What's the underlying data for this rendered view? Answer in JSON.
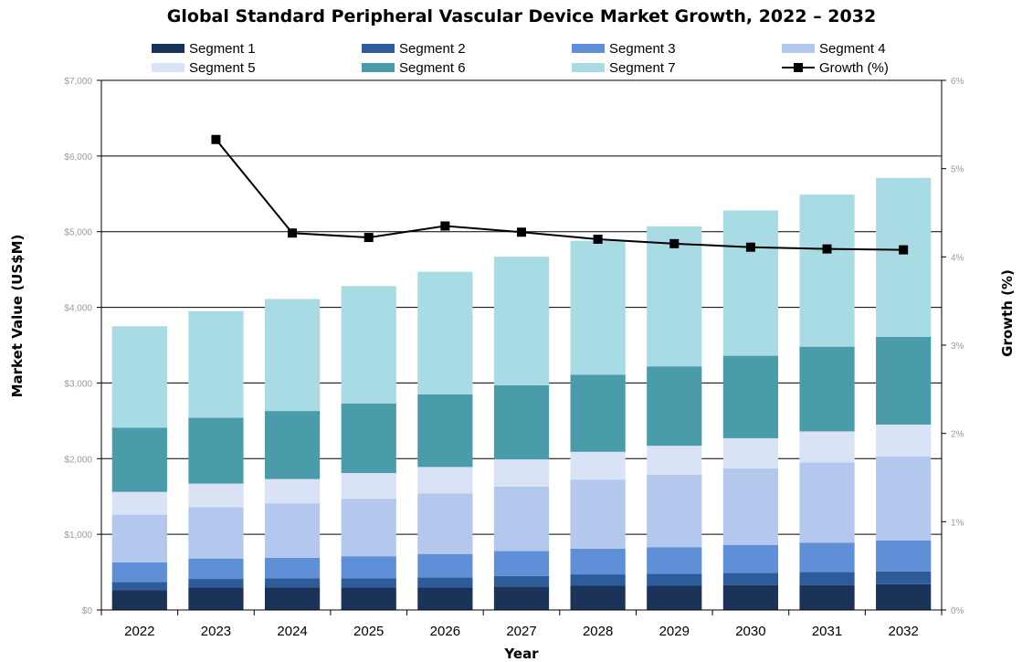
{
  "chart_data": {
    "type": "bar",
    "title": "Global Standard Peripheral Vascular Device Market Growth, 2022 – 2032",
    "xlabel": "Year",
    "ylabel": "Market Value (US$M)",
    "y2label": "Growth (%)",
    "categories": [
      "2022",
      "2023",
      "2024",
      "2025",
      "2026",
      "2027",
      "2028",
      "2029",
      "2030",
      "2031",
      "2032"
    ],
    "ylim": [
      0,
      7000
    ],
    "y_ticks": [
      "$0",
      "$1,000",
      "$2,000",
      "$3,000",
      "$4,000",
      "$5,000",
      "$6,000",
      "$7,000"
    ],
    "y2lim": [
      0,
      6
    ],
    "y2_ticks": [
      "0%",
      "1%",
      "2%",
      "3%",
      "4%",
      "5%",
      "6%"
    ],
    "grid": true,
    "legend_position": "top",
    "series": [
      {
        "name": "Segment 1",
        "color": "#1b3358",
        "values": [
          260,
          300,
          300,
          300,
          300,
          310,
          320,
          320,
          330,
          330,
          340
        ]
      },
      {
        "name": "Segment 2",
        "color": "#2e5c9b",
        "values": [
          110,
          110,
          120,
          120,
          130,
          140,
          150,
          160,
          160,
          170,
          170
        ]
      },
      {
        "name": "Segment 3",
        "color": "#5f8fd7",
        "values": [
          260,
          270,
          270,
          290,
          310,
          330,
          340,
          350,
          370,
          390,
          410
        ]
      },
      {
        "name": "Segment 4",
        "color": "#b3c8ec",
        "values": [
          630,
          680,
          720,
          760,
          800,
          850,
          910,
          960,
          1010,
          1060,
          1110
        ]
      },
      {
        "name": "Segment 5",
        "color": "#d9e3f5",
        "values": [
          300,
          310,
          320,
          340,
          350,
          360,
          370,
          380,
          400,
          410,
          420
        ]
      },
      {
        "name": "Segment 6",
        "color": "#4a9cab",
        "values": [
          850,
          870,
          900,
          920,
          960,
          980,
          1020,
          1050,
          1090,
          1120,
          1160
        ]
      },
      {
        "name": "Segment 7",
        "color": "#a9dbe4",
        "values": [
          1340,
          1410,
          1480,
          1550,
          1620,
          1700,
          1770,
          1850,
          1920,
          2010,
          2100
        ]
      }
    ],
    "line_series": {
      "name": "Growth (%)",
      "color": "#000000",
      "axis": "right",
      "values": [
        null,
        5.33,
        4.27,
        4.22,
        4.35,
        4.28,
        4.2,
        4.15,
        4.11,
        4.09,
        4.08
      ]
    }
  }
}
